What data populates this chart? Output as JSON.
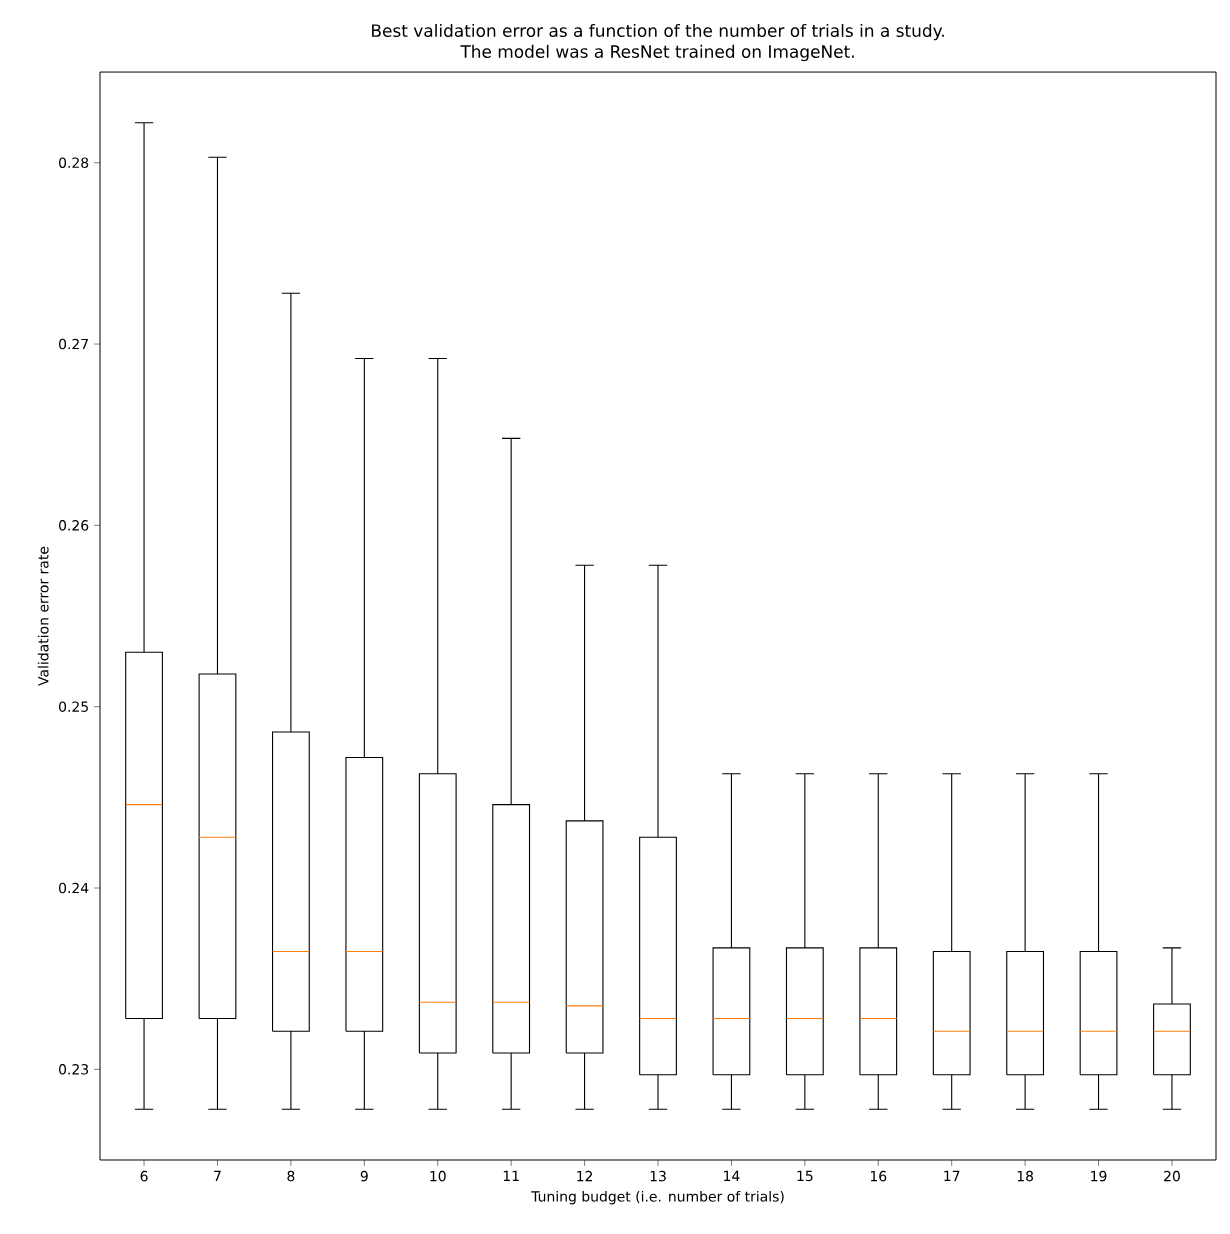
{
  "chart_data": {
    "type": "box",
    "title": "Best validation error as a function of the number of trials in a study.",
    "subtitle": "The model was a ResNet trained on ImageNet.",
    "xlabel": "Tuning budget (i.e. number of trials)",
    "ylabel": "Validation error rate",
    "categories": [
      "6",
      "7",
      "8",
      "9",
      "10",
      "11",
      "12",
      "13",
      "14",
      "15",
      "16",
      "17",
      "18",
      "19",
      "20"
    ],
    "color": "#000000",
    "boxes": [
      {
        "low": 0.2278,
        "q1": 0.2328,
        "median": 0.2446,
        "q3": 0.253,
        "high": 0.2822
      },
      {
        "low": 0.2278,
        "q1": 0.2328,
        "median": 0.2428,
        "q3": 0.2518,
        "high": 0.2803
      },
      {
        "low": 0.2278,
        "q1": 0.2321,
        "median": 0.2365,
        "q3": 0.2486,
        "high": 0.2728
      },
      {
        "low": 0.2278,
        "q1": 0.2321,
        "median": 0.2365,
        "q3": 0.2472,
        "high": 0.2692
      },
      {
        "low": 0.2278,
        "q1": 0.2309,
        "median": 0.2337,
        "q3": 0.2463,
        "high": 0.2692
      },
      {
        "low": 0.2278,
        "q1": 0.2309,
        "median": 0.2337,
        "q3": 0.2446,
        "high": 0.2648
      },
      {
        "low": 0.2278,
        "q1": 0.2309,
        "median": 0.2335,
        "q3": 0.2437,
        "high": 0.2578
      },
      {
        "low": 0.2278,
        "q1": 0.2297,
        "median": 0.2328,
        "q3": 0.2428,
        "high": 0.2578
      },
      {
        "low": 0.2278,
        "q1": 0.2297,
        "median": 0.2328,
        "q3": 0.2367,
        "high": 0.2463
      },
      {
        "low": 0.2278,
        "q1": 0.2297,
        "median": 0.2328,
        "q3": 0.2367,
        "high": 0.2463
      },
      {
        "low": 0.2278,
        "q1": 0.2297,
        "median": 0.2328,
        "q3": 0.2367,
        "high": 0.2463
      },
      {
        "low": 0.2278,
        "q1": 0.2297,
        "median": 0.2321,
        "q3": 0.2365,
        "high": 0.2463
      },
      {
        "low": 0.2278,
        "q1": 0.2297,
        "median": 0.2321,
        "q3": 0.2365,
        "high": 0.2463
      },
      {
        "low": 0.2278,
        "q1": 0.2297,
        "median": 0.2321,
        "q3": 0.2365,
        "high": 0.2463
      },
      {
        "low": 0.2278,
        "q1": 0.2297,
        "median": 0.2321,
        "q3": 0.2336,
        "high": 0.2367
      }
    ],
    "ylim": [
      0.225,
      0.285
    ],
    "yticks": [
      0.23,
      0.24,
      0.25,
      0.26,
      0.27,
      0.28
    ]
  }
}
